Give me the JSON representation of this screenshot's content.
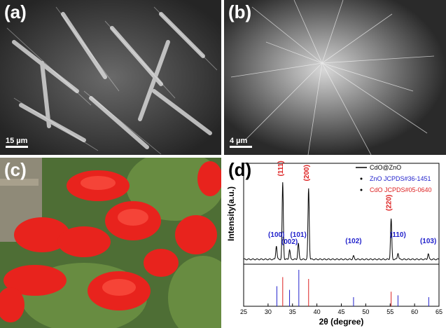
{
  "panels": {
    "a": {
      "label": "(a)",
      "scale": "15 µm"
    },
    "b": {
      "label": "(b)",
      "scale": "4 µm"
    },
    "c": {
      "label": "(c)"
    },
    "d": {
      "label": "(d)"
    }
  },
  "chart_data": {
    "type": "line",
    "xlabel": "2θ (degree)",
    "ylabel": "Intensity(a.u.)",
    "xlim": [
      25,
      65
    ],
    "xticks": [
      25,
      30,
      35,
      40,
      45,
      50,
      55,
      60,
      65
    ],
    "legend": {
      "placement": "top-right",
      "entries": [
        {
          "label": "CdO@ZnO",
          "color": "#000000",
          "style": "line"
        },
        {
          "label": "ZnO JCPDS#36-1451",
          "color": "#2222cc",
          "style": "dot"
        },
        {
          "label": "CdO JCPDS#05-0640",
          "color": "#dd2222",
          "style": "dot"
        }
      ]
    },
    "series": [
      {
        "name": "CdO@ZnO",
        "color": "#000000",
        "peaks": [
          {
            "x": 31.7,
            "h": 0.17
          },
          {
            "x": 33.0,
            "h": 0.95
          },
          {
            "x": 34.4,
            "h": 0.12
          },
          {
            "x": 36.2,
            "h": 0.2
          },
          {
            "x": 38.3,
            "h": 0.88
          },
          {
            "x": 47.5,
            "h": 0.04
          },
          {
            "x": 55.2,
            "h": 0.5
          },
          {
            "x": 56.6,
            "h": 0.08
          },
          {
            "x": 62.8,
            "h": 0.07
          }
        ]
      }
    ],
    "peak_labels": [
      {
        "text": "(100)",
        "x": 31.7,
        "color": "#2222cc",
        "y": 0.28
      },
      {
        "text": "(111)",
        "x": 33.0,
        "color": "#dd2222",
        "y": 1.03
      },
      {
        "text": "(002)",
        "x": 34.4,
        "color": "#2222cc",
        "y": 0.19
      },
      {
        "text": "(101)",
        "x": 36.2,
        "color": "#2222cc",
        "y": 0.28
      },
      {
        "text": "(200)",
        "x": 38.3,
        "color": "#dd2222",
        "y": 0.97
      },
      {
        "text": "(102)",
        "x": 47.5,
        "color": "#2222cc",
        "y": 0.2
      },
      {
        "text": "(220)",
        "x": 55.2,
        "color": "#dd2222",
        "y": 0.6
      },
      {
        "text": "(110)",
        "x": 56.6,
        "color": "#2222cc",
        "y": 0.28
      },
      {
        "text": "(103)",
        "x": 62.8,
        "color": "#2222cc",
        "y": 0.2
      }
    ],
    "reference_lines": [
      {
        "x": 31.8,
        "h": 0.55,
        "color": "#2222cc"
      },
      {
        "x": 33.0,
        "h": 0.8,
        "color": "#dd2222"
      },
      {
        "x": 34.4,
        "h": 0.45,
        "color": "#2222cc"
      },
      {
        "x": 36.3,
        "h": 1.0,
        "color": "#2222cc"
      },
      {
        "x": 38.3,
        "h": 0.75,
        "color": "#dd2222"
      },
      {
        "x": 47.5,
        "h": 0.25,
        "color": "#2222cc"
      },
      {
        "x": 55.2,
        "h": 0.4,
        "color": "#dd2222"
      },
      {
        "x": 56.6,
        "h": 0.3,
        "color": "#2222cc"
      },
      {
        "x": 62.9,
        "h": 0.25,
        "color": "#2222cc"
      }
    ]
  }
}
